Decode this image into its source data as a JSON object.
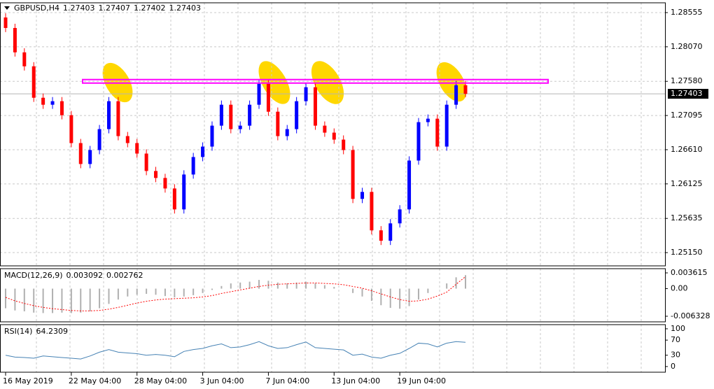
{
  "chart_data": [
    {
      "type": "candlestick",
      "title": "GBPUSD,H4",
      "header_values": [
        1.27403,
        1.27407,
        1.27402,
        1.27403
      ],
      "categories": [
        "16 May 2019",
        null,
        null,
        null,
        null,
        null,
        null,
        "22 May 04:00",
        null,
        null,
        null,
        null,
        null,
        null,
        "28 May 04:00",
        null,
        null,
        null,
        null,
        null,
        null,
        "3 Jun 04:00",
        null,
        null,
        null,
        null,
        null,
        null,
        "7 Jun 04:00",
        null,
        null,
        null,
        null,
        null,
        null,
        "13 Jun 04:00",
        null,
        null,
        null,
        null,
        null,
        null,
        "19 Jun 04:00",
        null,
        null,
        null,
        null,
        null,
        null,
        null
      ],
      "open": [
        1.28486,
        1.28337,
        1.27991,
        1.27793,
        1.27347,
        1.27248,
        1.27298,
        1.271,
        1.26704,
        1.26407,
        1.26605,
        1.26902,
        1.27298,
        1.26803,
        1.26704,
        1.26555,
        1.26308,
        1.26209,
        1.2606,
        1.25763,
        1.26258,
        1.26506,
        1.26654,
        1.26951,
        1.27248,
        1.26902,
        1.26951,
        1.27248,
        1.27545,
        1.27149,
        1.26803,
        1.26902,
        1.27298,
        1.27496,
        1.26951,
        1.26852,
        1.26753,
        1.26605,
        1.25912,
        1.26011,
        1.25466,
        1.25318,
        1.25565,
        1.25763,
        1.26456,
        1.27001,
        1.2705,
        1.26654,
        1.27248,
        1.27525
      ],
      "high": [
        1.28545,
        1.28397,
        1.2805,
        1.27852,
        1.27407,
        1.27357,
        1.27357,
        1.27159,
        1.26763,
        1.26664,
        1.26961,
        1.27357,
        1.27357,
        1.26862,
        1.26763,
        1.26615,
        1.26367,
        1.26268,
        1.2612,
        1.26318,
        1.26565,
        1.26714,
        1.27011,
        1.27308,
        1.27308,
        1.27011,
        1.27308,
        1.27605,
        1.27605,
        1.27209,
        1.26961,
        1.27357,
        1.27555,
        1.27555,
        1.27011,
        1.26912,
        1.26813,
        1.26664,
        1.2607,
        1.2607,
        1.25526,
        1.25625,
        1.25823,
        1.26516,
        1.2706,
        1.2711,
        1.2711,
        1.27308,
        1.27585,
        1.27585
      ],
      "low": [
        1.28278,
        1.27931,
        1.27733,
        1.27288,
        1.27189,
        1.27189,
        1.2704,
        1.26644,
        1.26347,
        1.26347,
        1.26545,
        1.26842,
        1.26743,
        1.26644,
        1.26496,
        1.26248,
        1.26149,
        1.26001,
        1.25704,
        1.25704,
        1.26199,
        1.26446,
        1.26595,
        1.26892,
        1.26842,
        1.26842,
        1.26892,
        1.27189,
        1.2709,
        1.26743,
        1.26743,
        1.26842,
        1.27238,
        1.26892,
        1.26793,
        1.26694,
        1.26545,
        1.25852,
        1.25852,
        1.25407,
        1.25258,
        1.25258,
        1.25506,
        1.25704,
        1.26397,
        1.26941,
        1.26595,
        1.26595,
        1.27189,
        1.27357
      ],
      "close": [
        1.28337,
        1.27991,
        1.27793,
        1.27347,
        1.27248,
        1.27298,
        1.271,
        1.26704,
        1.26407,
        1.26605,
        1.26902,
        1.27298,
        1.26803,
        1.26704,
        1.26555,
        1.26308,
        1.26209,
        1.2606,
        1.25763,
        1.26258,
        1.26506,
        1.26654,
        1.26951,
        1.27248,
        1.26902,
        1.26951,
        1.27248,
        1.27545,
        1.27149,
        1.26803,
        1.26902,
        1.27298,
        1.27496,
        1.26951,
        1.26852,
        1.26753,
        1.26605,
        1.25912,
        1.26011,
        1.25466,
        1.25318,
        1.25565,
        1.25763,
        1.26456,
        1.27001,
        1.2705,
        1.26654,
        1.27248,
        1.27525,
        1.27403
      ],
      "up_color": "#0000ff",
      "down_color": "#ff0000",
      "ylim": [
        1.24962,
        1.28694
      ],
      "yticks": [
        1.28555,
        {
          "value": 1.2807,
          "label": "1.28070"
        },
        {
          "value": 1.2758,
          "label": "1.27580"
        },
        1.27095,
        {
          "value": 1.2661,
          "label": "1.26610"
        },
        1.26125,
        1.25635,
        {
          "value": 1.2515,
          "label": "1.25150"
        }
      ],
      "grid": true,
      "current_price": 1.27403,
      "resistance_zone": [
        1.27555,
        1.27605
      ],
      "zone_color": "#ff00ff"
    },
    {
      "type": "macd",
      "title": "MACD(12,26,9)",
      "histogram": {
        "color": "#b0b0b0",
        "values": [
          -0.0045,
          -0.005,
          -0.0052,
          -0.0055,
          -0.0056,
          -0.0056,
          -0.0055,
          -0.0056,
          -0.0055,
          -0.0052,
          -0.0045,
          -0.0035,
          -0.0025,
          -0.0018,
          -0.0014,
          -0.0012,
          -0.0014,
          -0.0017,
          -0.002,
          -0.0018,
          -0.0015,
          -0.001,
          -0.0003,
          0.0006,
          0.0012,
          0.0014,
          0.0016,
          0.002,
          0.0018,
          0.0014,
          0.0012,
          0.0014,
          0.0016,
          0.0012,
          0.0008,
          0.0004,
          0.0,
          -0.001,
          -0.0018,
          -0.0028,
          -0.0038,
          -0.0044,
          -0.0046,
          -0.004,
          -0.0025,
          -0.001,
          0.0,
          0.0012,
          0.0026,
          0.003092
        ]
      },
      "signal": {
        "color": "#ff0000",
        "values": [
          -0.002,
          -0.0028,
          -0.0034,
          -0.0039,
          -0.0043,
          -0.0046,
          -0.0048,
          -0.005,
          -0.0051,
          -0.0051,
          -0.005,
          -0.0047,
          -0.0043,
          -0.0038,
          -0.0033,
          -0.0029,
          -0.0026,
          -0.0024,
          -0.0023,
          -0.0022,
          -0.0021,
          -0.0019,
          -0.0016,
          -0.0011,
          -0.0007,
          -0.0003,
          0.0001,
          0.0005,
          0.0008,
          0.001,
          0.0011,
          0.0012,
          0.0013,
          0.0013,
          0.0012,
          0.0011,
          0.0009,
          0.0005,
          0.0001,
          -0.0005,
          -0.0012,
          -0.0019,
          -0.0025,
          -0.0029,
          -0.0028,
          -0.0024,
          -0.0017,
          -0.0008,
          0.001,
          0.002762
        ]
      },
      "ylim": [
        -0.00761,
        0.00458
      ],
      "yticks": [
        0.003615,
        {
          "value": 0,
          "label": "0.00"
        },
        -0.006328
      ]
    },
    {
      "type": "line",
      "title": "RSI(14)",
      "values": [
        30,
        25,
        24,
        22,
        28,
        26,
        24,
        22,
        20,
        28,
        38,
        45,
        38,
        36,
        34,
        30,
        32,
        30,
        26,
        40,
        45,
        48,
        55,
        60,
        50,
        52,
        58,
        66,
        55,
        48,
        50,
        58,
        65,
        50,
        48,
        46,
        44,
        30,
        33,
        25,
        22,
        30,
        35,
        48,
        62,
        60,
        52,
        62,
        66,
        64.2309
      ],
      "color": "#4682b4",
      "ylim": [
        -15,
        111
      ],
      "yticks": [
        100,
        70,
        30,
        0
      ]
    }
  ]
}
